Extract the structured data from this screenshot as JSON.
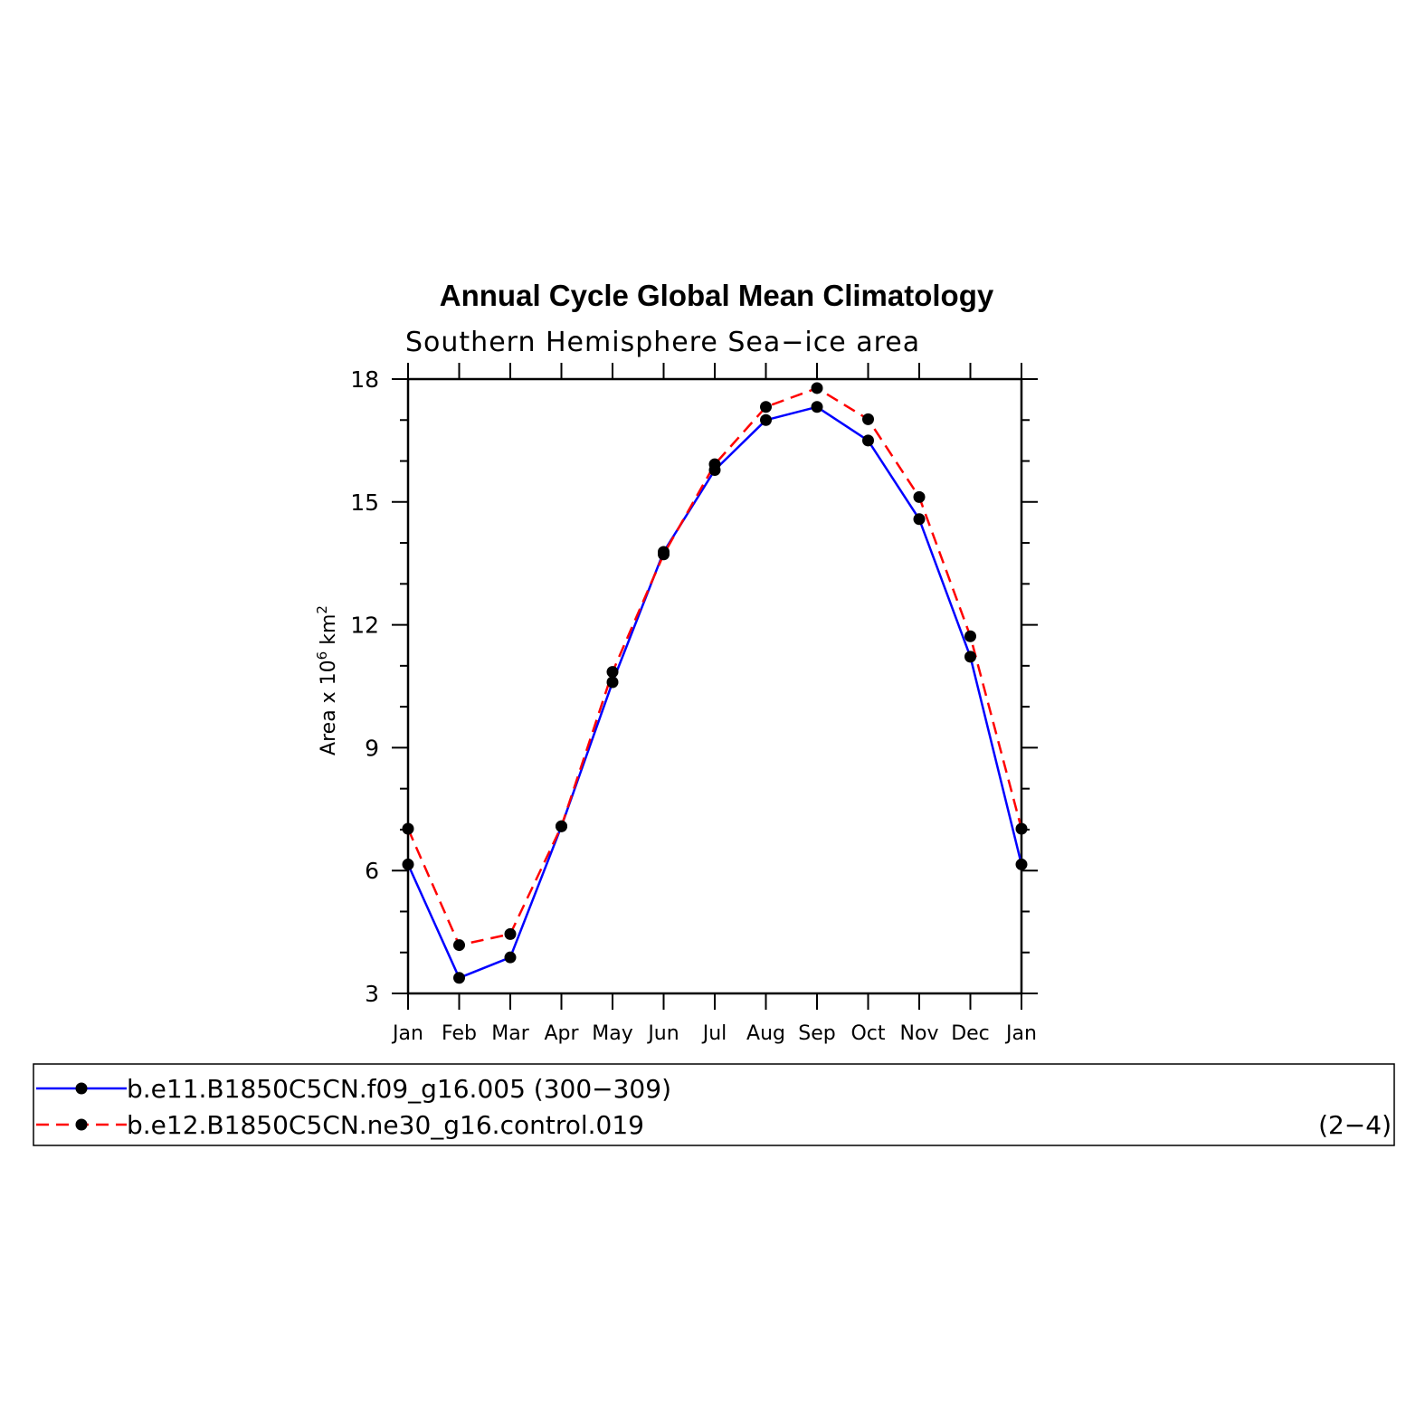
{
  "chart_data": {
    "type": "line",
    "title": "Annual Cycle Global Mean Climatology",
    "subtitle": "Southern Hemisphere Sea−ice area",
    "ylabel_main": "Area x 10",
    "ylabel_exp1": "6",
    "ylabel_unit": " km",
    "ylabel_exp2": "2",
    "xlabel": "",
    "categories": [
      "Jan",
      "Feb",
      "Mar",
      "Apr",
      "May",
      "Jun",
      "Jul",
      "Aug",
      "Sep",
      "Oct",
      "Nov",
      "Dec",
      "Jan"
    ],
    "ylim": [
      3,
      18
    ],
    "yticks": [
      3,
      6,
      9,
      12,
      15,
      18
    ],
    "ytick_labels": [
      "3",
      "6",
      "9",
      "12",
      "15",
      "18"
    ],
    "grid": false,
    "legend_position": "bottom",
    "series": [
      {
        "name": "b.e11.B1850C5CN.f09_g16.005 (300−309)",
        "color": "#0000ff",
        "dash": "solid",
        "values": [
          6.15,
          3.38,
          3.88,
          7.08,
          10.6,
          13.78,
          15.78,
          17.0,
          17.32,
          16.5,
          14.58,
          11.22,
          6.15
        ]
      },
      {
        "name": "b.e12.B1850C5CN.ne30_g16.control.019",
        "color": "#ff0000",
        "dash": "dashed",
        "values": [
          7.02,
          4.18,
          4.45,
          7.08,
          10.85,
          13.72,
          15.92,
          17.32,
          17.78,
          17.02,
          15.12,
          11.72,
          7.02
        ]
      }
    ],
    "corner_annotation": "(2−4)"
  }
}
